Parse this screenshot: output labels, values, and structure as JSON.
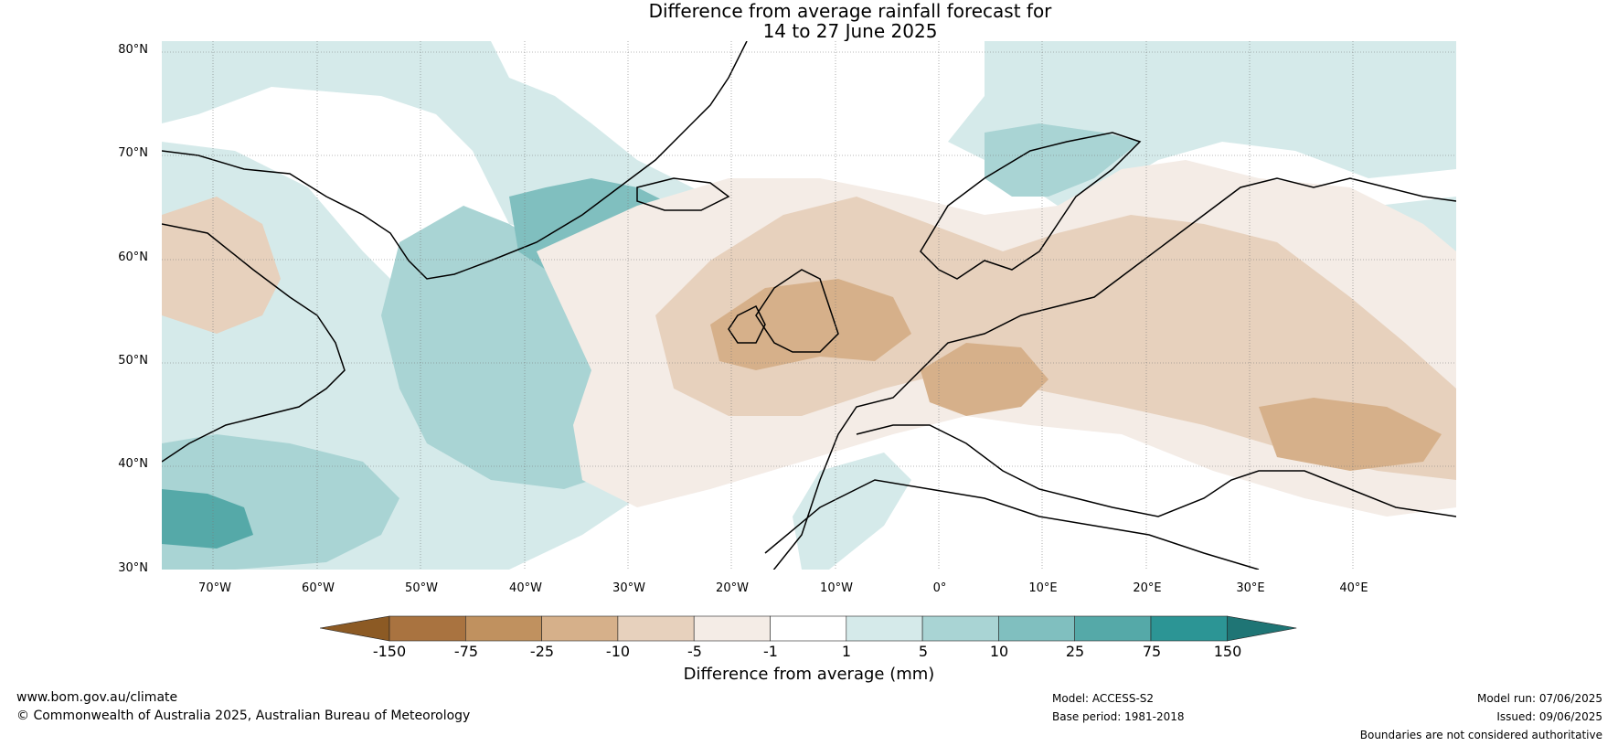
{
  "title_line1": "Difference from average rainfall forecast for",
  "title_line2": "14 to 27 June 2025",
  "lat_labels": [
    "80°N",
    "70°N",
    "60°N",
    "50°N",
    "40°N",
    "30°N"
  ],
  "lon_labels": [
    "70°W",
    "60°W",
    "50°W",
    "40°W",
    "30°W",
    "20°W",
    "10°W",
    "0°",
    "10°E",
    "20°E",
    "30°E",
    "40°E"
  ],
  "colorbar": {
    "ticks": [
      "-150",
      "-75",
      "-25",
      "-10",
      "-5",
      "-1",
      "1",
      "5",
      "10",
      "25",
      "75",
      "150"
    ],
    "colors": [
      "#8c5a24",
      "#a97340",
      "#c0915f",
      "#d6b08a",
      "#e7d1bd",
      "#f4ece6",
      "#ffffff",
      "#d5eaea",
      "#a9d4d4",
      "#80bfbf",
      "#55a9a8",
      "#2c9595",
      "#1f7575"
    ],
    "label": "Difference from average (mm)"
  },
  "footer": {
    "website": "www.bom.gov.au/climate",
    "copyright": "© Commonwealth of Australia 2025, Australian Bureau of Meteorology",
    "model": "Model: ACCESS-S2",
    "base_period": "Base period: 1981-2018",
    "model_run": "Model run: 07/06/2025",
    "issued": "Issued: 09/06/2025",
    "disclaimer": "Boundaries are not considered authoritative"
  }
}
